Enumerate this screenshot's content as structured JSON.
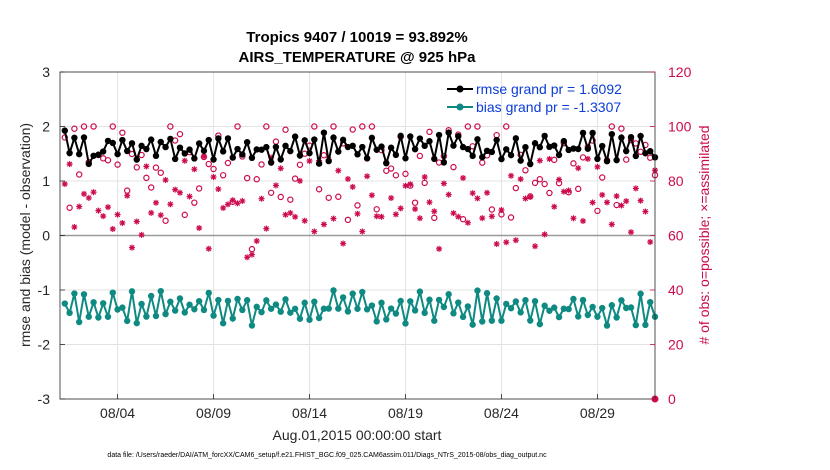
{
  "chart_data": {
    "type": "line",
    "title": "Tropics 9407 / 10019 = 93.892%",
    "subtitle": "AIRS_TEMPERATURE @ 925 hPa",
    "xlabel": "Aug.01,2015 00:00:00 start",
    "ylabel": "rmse and bias (model - observation)",
    "ylabel_right": "# of obs: o=possible; ×=assimilated",
    "ylim": [
      -3,
      3
    ],
    "ylim_right": [
      0,
      120
    ],
    "xlim_days": [
      0,
      31
    ],
    "x_ticks": [
      {
        "day": 3,
        "label": "08/04"
      },
      {
        "day": 8,
        "label": "08/09"
      },
      {
        "day": 13,
        "label": "08/14"
      },
      {
        "day": 18,
        "label": "08/19"
      },
      {
        "day": 23,
        "label": "08/24"
      },
      {
        "day": 28,
        "label": "08/29"
      }
    ],
    "y_ticks": [
      "-3",
      "-2",
      "-1",
      "0",
      "1",
      "2",
      "3"
    ],
    "y_ticks_right": [
      "0",
      "20",
      "40",
      "60",
      "80",
      "100",
      "120"
    ],
    "legend": [
      {
        "label": "rmse grand pr = 1.6092",
        "color": "#000000"
      },
      {
        "label": "bias grand pr = -1.3307",
        "color": "#0f8a83"
      }
    ],
    "series_colors": {
      "rmse": "#000000",
      "bias": "#0f8a83",
      "obs": "#cc0a4f"
    },
    "rmse_seed": [
      1.85,
      1.55,
      1.6,
      1.45,
      1.9,
      1.55,
      1.3,
      1.65,
      1.5,
      1.75
    ],
    "rmse_mean": 1.6,
    "bias_mean": -1.33,
    "possible_mean": 80,
    "assimilated_mean": 72,
    "n_points": 124,
    "start_day": 0.25,
    "step_days": 0.25
  },
  "footer": {
    "data_file": "data file: /Users/raeder/DAI/ATM_forcXX/CAM6_setup/f.e21.FHIST_BGC.f09_025.CAM6assim.011/Diags_NTrS_2015-08/obs_diag_output.nc"
  }
}
